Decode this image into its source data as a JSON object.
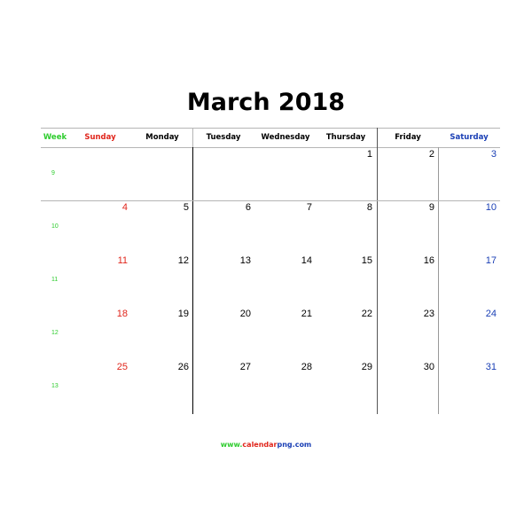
{
  "title": "March 2018",
  "headers": [
    "Week",
    "Sunday",
    "Monday",
    "Tuesday",
    "Wednesday",
    "Thursday",
    "Friday",
    "Saturday"
  ],
  "weeks": [
    {
      "week": "9",
      "days": [
        "",
        "",
        "",
        "",
        "1",
        "2",
        "3"
      ]
    },
    {
      "week": "10",
      "days": [
        "4",
        "5",
        "6",
        "7",
        "8",
        "9",
        "10"
      ]
    },
    {
      "week": "11",
      "days": [
        "11",
        "12",
        "13",
        "14",
        "15",
        "16",
        "17"
      ]
    },
    {
      "week": "12",
      "days": [
        "18",
        "19",
        "20",
        "21",
        "22",
        "23",
        "24"
      ]
    },
    {
      "week": "13",
      "days": [
        "25",
        "26",
        "27",
        "28",
        "29",
        "30",
        "31"
      ]
    }
  ],
  "footer": {
    "www": "www.",
    "calendar": "calendar",
    "png": "png",
    "com": ".com"
  },
  "colors": {
    "week": "#2ecc2e",
    "sunday": "#e0251b",
    "saturday": "#1a3fb5",
    "text": "#000000",
    "grid": "#b5b5b5"
  }
}
